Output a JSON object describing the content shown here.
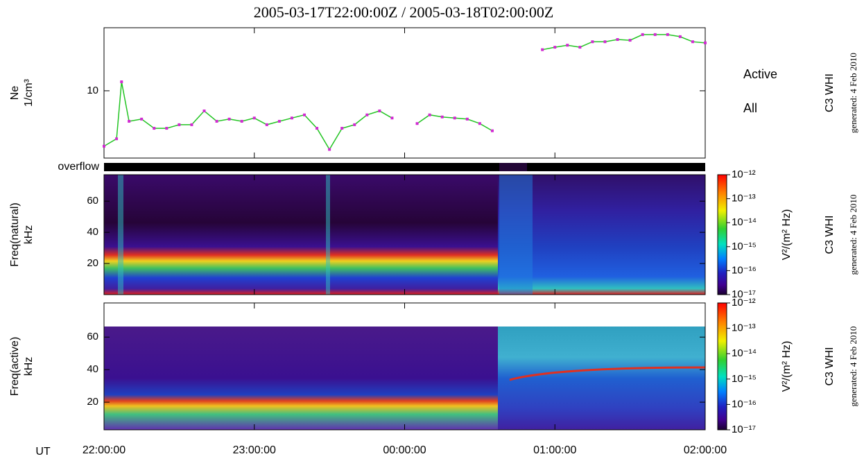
{
  "chart_data": [
    {
      "type": "line",
      "title": "2005-03-17T22:00:00Z / 2005-03-18T02:00:00Z",
      "ylabel": [
        "Ne",
        "1/cm³"
      ],
      "log_y": true,
      "ylim": [
        4,
        23.6
      ],
      "yticks": [
        10
      ],
      "xlim": [
        0,
        240
      ],
      "legend": "right",
      "instrument": "C3 WHI",
      "generated": "generated: 4 Feb 2010",
      "x": [
        0,
        5,
        7,
        10,
        15,
        20,
        25,
        30,
        35,
        40,
        45,
        50,
        55,
        60,
        65,
        70,
        75,
        80,
        85,
        90,
        95,
        100,
        105,
        110,
        115,
        120,
        125,
        130,
        135,
        140,
        145,
        150,
        155,
        160,
        165,
        170,
        175,
        180,
        185,
        190,
        195,
        200,
        205,
        210,
        215,
        220,
        225,
        230,
        235,
        240
      ],
      "series": [
        {
          "name": "Active",
          "color": "#d22ad2",
          "values": [
            4.7,
            5.2,
            11.3,
            6.6,
            6.8,
            6.0,
            6.0,
            6.3,
            6.3,
            7.6,
            6.6,
            6.8,
            6.6,
            6.9,
            6.3,
            6.6,
            6.9,
            7.2,
            6.0,
            4.5,
            6.0,
            6.3,
            7.2,
            7.6,
            6.9,
            null,
            6.4,
            7.2,
            7.0,
            6.9,
            6.8,
            6.4,
            5.8,
            null,
            null,
            null,
            17.5,
            18.1,
            18.6,
            18.1,
            19.5,
            19.5,
            20.1,
            19.9,
            21.5,
            21.5,
            21.5,
            20.9,
            19.5,
            19.2
          ]
        },
        {
          "name": "All",
          "color": "#22c422",
          "values": [
            4.7,
            5.2,
            11.3,
            6.6,
            6.8,
            6.0,
            6.0,
            6.3,
            6.3,
            7.6,
            6.6,
            6.8,
            6.6,
            6.9,
            6.3,
            6.6,
            6.9,
            7.2,
            6.0,
            4.5,
            6.0,
            6.3,
            7.2,
            7.6,
            6.9,
            null,
            6.4,
            7.2,
            7.0,
            6.9,
            6.8,
            6.4,
            5.8,
            null,
            null,
            null,
            17.5,
            18.1,
            18.6,
            18.1,
            19.5,
            19.5,
            20.1,
            19.9,
            21.5,
            21.5,
            21.5,
            20.9,
            19.5,
            19.2
          ]
        }
      ]
    },
    {
      "type": "spectrogram",
      "overflow_label": "overflow",
      "ylabel": [
        "Freq(natural)",
        "kHz"
      ],
      "ylim": [
        0,
        77
      ],
      "yticks": [
        20,
        40,
        60
      ],
      "xlim": [
        0,
        240
      ],
      "colorbar": {
        "log": true,
        "lim": [
          1e-17,
          1e-12
        ],
        "label": "V²/(m² Hz)",
        "ticks": [
          {
            "value": 1e-12,
            "label": "10⁻¹²"
          },
          {
            "value": 1e-13,
            "label": "10⁻¹³"
          },
          {
            "value": 1e-14,
            "label": "10⁻¹⁴"
          },
          {
            "value": 1e-15,
            "label": "10⁻¹⁵"
          },
          {
            "value": 1e-16,
            "label": "10⁻¹⁶"
          },
          {
            "value": 1e-17,
            "label": "10⁻¹⁷"
          }
        ]
      },
      "instrument": "C3 WHI",
      "generated": "generated: 4 Feb 2010"
    },
    {
      "type": "spectrogram",
      "ylabel": [
        "Freq(active)",
        "kHz"
      ],
      "ylim": [
        3,
        81
      ],
      "yticks": [
        20,
        40,
        60
      ],
      "xlim": [
        0,
        240
      ],
      "xlabel": "UT",
      "xticks": [
        {
          "value": 0,
          "label": "22:00:00"
        },
        {
          "value": 60,
          "label": "23:00:00"
        },
        {
          "value": 120,
          "label": "00:00:00"
        },
        {
          "value": 180,
          "label": "01:00:00"
        },
        {
          "value": 240,
          "label": "02:00:00"
        }
      ],
      "colorbar": {
        "log": true,
        "lim": [
          1e-17,
          1e-12
        ],
        "label": "V²/(m² Hz)",
        "ticks": [
          {
            "value": 1e-12,
            "label": "10⁻¹²"
          },
          {
            "value": 1e-13,
            "label": "10⁻¹³"
          },
          {
            "value": 1e-14,
            "label": "10⁻¹⁴"
          },
          {
            "value": 1e-15,
            "label": "10⁻¹⁵"
          },
          {
            "value": 1e-16,
            "label": "10⁻¹⁶"
          },
          {
            "value": 1e-17,
            "label": "10⁻¹⁷"
          }
        ]
      },
      "instrument": "C3 WHI",
      "generated": "generated: 4 Feb 2010"
    }
  ]
}
